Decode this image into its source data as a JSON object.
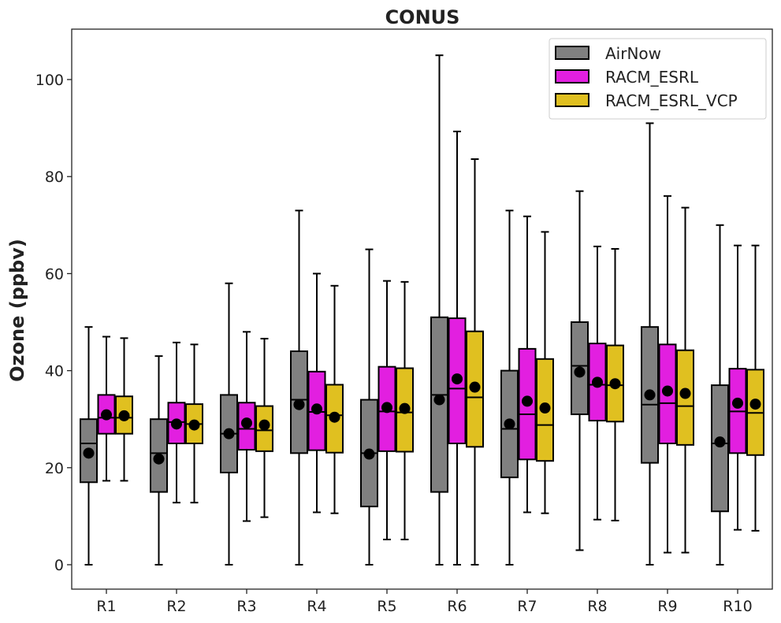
{
  "chart_data": {
    "type": "box",
    "title": "CONUS",
    "xlabel": "",
    "ylabel": "Ozone (ppbv)",
    "ylim": [
      -5,
      110
    ],
    "yticks": [
      0,
      20,
      40,
      60,
      80,
      100
    ],
    "categories": [
      "R1",
      "R2",
      "R3",
      "R4",
      "R5",
      "R6",
      "R7",
      "R8",
      "R9",
      "R10"
    ],
    "grid": false,
    "legend_position": "top-right",
    "series": [
      {
        "name": "AirNow",
        "color": "#808080",
        "boxes": [
          {
            "whisker_low": 0,
            "q1": 17,
            "median": 25,
            "q3": 30,
            "whisker_high": 49,
            "mean": 23
          },
          {
            "whisker_low": 0,
            "q1": 15,
            "median": 23,
            "q3": 30,
            "whisker_high": 43,
            "mean": 21.8
          },
          {
            "whisker_low": 0,
            "q1": 19,
            "median": 27,
            "q3": 35,
            "whisker_high": 58,
            "mean": 27
          },
          {
            "whisker_low": 0,
            "q1": 23,
            "median": 34,
            "q3": 44,
            "whisker_high": 73,
            "mean": 33
          },
          {
            "whisker_low": 0,
            "q1": 12,
            "median": 23,
            "q3": 34,
            "whisker_high": 65,
            "mean": 22.8
          },
          {
            "whisker_low": 0,
            "q1": 15,
            "median": 35,
            "q3": 51,
            "whisker_high": 105,
            "mean": 34
          },
          {
            "whisker_low": 0,
            "q1": 18,
            "median": 28,
            "q3": 40,
            "whisker_high": 73,
            "mean": 29
          },
          {
            "whisker_low": 3,
            "q1": 31,
            "median": 41,
            "q3": 50,
            "whisker_high": 77,
            "mean": 39.7
          },
          {
            "whisker_low": 0,
            "q1": 21,
            "median": 33,
            "q3": 49,
            "whisker_high": 91,
            "mean": 35
          },
          {
            "whisker_low": 0,
            "q1": 11,
            "median": 25,
            "q3": 37,
            "whisker_high": 70,
            "mean": 25.3
          }
        ]
      },
      {
        "name": "RACM_ESRL",
        "color": "#e21fe0",
        "boxes": [
          {
            "whisker_low": 17.3,
            "q1": 27,
            "median": 30.3,
            "q3": 35,
            "whisker_high": 47,
            "mean": 30.9
          },
          {
            "whisker_low": 12.8,
            "q1": 25,
            "median": 29.4,
            "q3": 33.4,
            "whisker_high": 45.8,
            "mean": 29
          },
          {
            "whisker_low": 9,
            "q1": 23.7,
            "median": 28,
            "q3": 33.4,
            "whisker_high": 48,
            "mean": 29.2
          },
          {
            "whisker_low": 10.8,
            "q1": 23.6,
            "median": 31.5,
            "q3": 39.8,
            "whisker_high": 60,
            "mean": 32.1
          },
          {
            "whisker_low": 5.2,
            "q1": 23.4,
            "median": 31.6,
            "q3": 40.8,
            "whisker_high": 58.5,
            "mean": 32.4
          },
          {
            "whisker_low": 0,
            "q1": 25,
            "median": 36.3,
            "q3": 50.8,
            "whisker_high": 89.3,
            "mean": 38.3
          },
          {
            "whisker_low": 10.8,
            "q1": 21.7,
            "median": 31,
            "q3": 44.5,
            "whisker_high": 71.8,
            "mean": 33.7
          },
          {
            "whisker_low": 9.3,
            "q1": 29.7,
            "median": 37.1,
            "q3": 45.6,
            "whisker_high": 65.6,
            "mean": 37.6
          },
          {
            "whisker_low": 2.5,
            "q1": 25,
            "median": 33.3,
            "q3": 45.4,
            "whisker_high": 76,
            "mean": 35.8
          },
          {
            "whisker_low": 7.2,
            "q1": 23,
            "median": 31.6,
            "q3": 40.4,
            "whisker_high": 65.8,
            "mean": 33.3
          }
        ]
      },
      {
        "name": "RACM_ESRL_VCP",
        "color": "#e0c020",
        "boxes": [
          {
            "whisker_low": 17.3,
            "q1": 27,
            "median": 30.3,
            "q3": 34.7,
            "whisker_high": 46.7,
            "mean": 30.7
          },
          {
            "whisker_low": 12.8,
            "q1": 25,
            "median": 29,
            "q3": 33.1,
            "whisker_high": 45.4,
            "mean": 28.8
          },
          {
            "whisker_low": 9.8,
            "q1": 23.4,
            "median": 27.7,
            "q3": 32.7,
            "whisker_high": 46.6,
            "mean": 28.8
          },
          {
            "whisker_low": 10.6,
            "q1": 23.1,
            "median": 30.8,
            "q3": 37.1,
            "whisker_high": 57.5,
            "mean": 30.4
          },
          {
            "whisker_low": 5.2,
            "q1": 23.3,
            "median": 31.4,
            "q3": 40.5,
            "whisker_high": 58.3,
            "mean": 32.2
          },
          {
            "whisker_low": 0,
            "q1": 24.3,
            "median": 34.5,
            "q3": 48.1,
            "whisker_high": 83.6,
            "mean": 36.6
          },
          {
            "whisker_low": 10.6,
            "q1": 21.4,
            "median": 28.8,
            "q3": 42.4,
            "whisker_high": 68.6,
            "mean": 32.3
          },
          {
            "whisker_low": 9.1,
            "q1": 29.5,
            "median": 37,
            "q3": 45.2,
            "whisker_high": 65.1,
            "mean": 37.3
          },
          {
            "whisker_low": 2.5,
            "q1": 24.7,
            "median": 32.7,
            "q3": 44.2,
            "whisker_high": 73.6,
            "mean": 35.3
          },
          {
            "whisker_low": 7,
            "q1": 22.6,
            "median": 31.3,
            "q3": 40.2,
            "whisker_high": 65.8,
            "mean": 33.1
          }
        ]
      }
    ]
  }
}
